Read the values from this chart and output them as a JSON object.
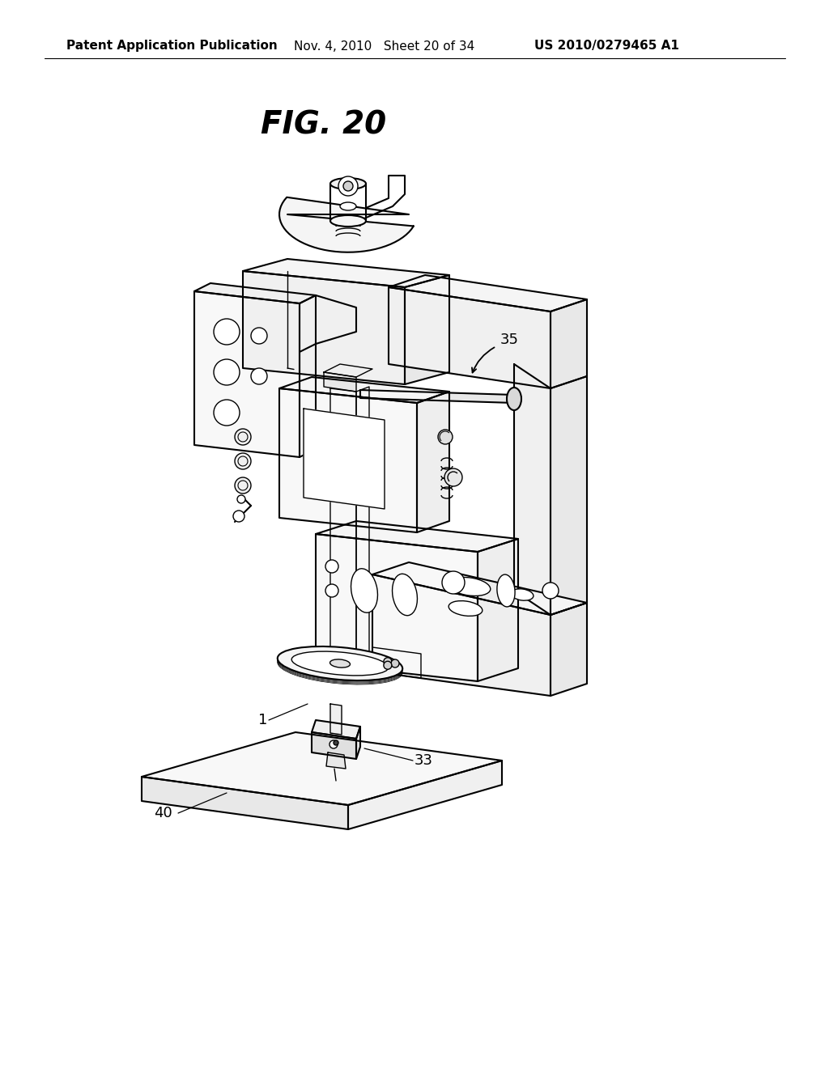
{
  "title": "FIG. 20",
  "header_left": "Patent Application Publication",
  "header_middle": "Nov. 4, 2010   Sheet 20 of 34",
  "header_right": "US 2010/0279465 A1",
  "bg_color": "#ffffff",
  "line_color": "#000000",
  "label_35": "35",
  "label_1": "1",
  "label_33": "33",
  "label_40": "40",
  "title_fontsize": 28,
  "header_fontsize": 11,
  "label_fontsize": 13
}
